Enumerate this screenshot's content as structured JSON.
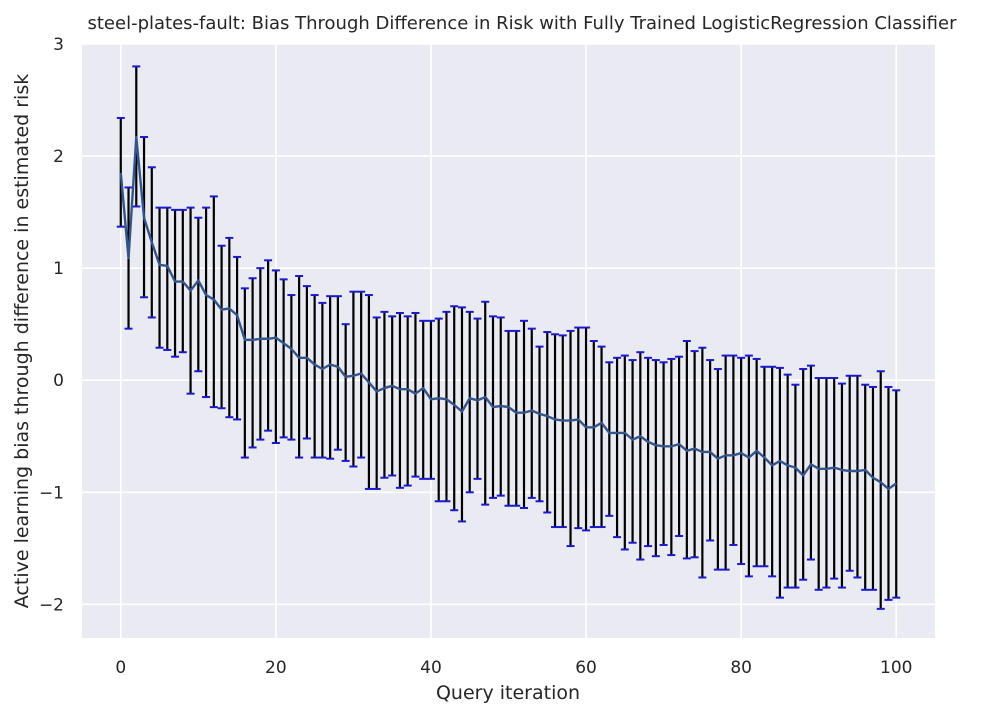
{
  "chart_data": {
    "type": "line",
    "title": "steel-plates-fault: Bias Through Difference in Risk with Fully Trained LogisticRegression Classifier",
    "xlabel": "Query iteration",
    "ylabel": "Active learning bias through difference in estimated risk",
    "xlim": [
      -5,
      105
    ],
    "ylim": [
      -2.3,
      3.0
    ],
    "xticks": [
      0,
      20,
      40,
      60,
      80,
      100
    ],
    "xtick_labels": [
      "0",
      "20",
      "40",
      "60",
      "80",
      "100"
    ],
    "yticks": [
      -2,
      -1,
      0,
      1,
      2,
      3
    ],
    "ytick_labels": [
      "−2",
      "−1",
      "0",
      "1",
      "2",
      "3"
    ],
    "grid": true,
    "colors": {
      "background": "#EAEAF2",
      "grid": "#FFFFFF",
      "line": "#34558B",
      "errorbar": "#000000",
      "cap": "#1A1ACC"
    },
    "series": [
      {
        "x": [
          0,
          1,
          2,
          3,
          4,
          5,
          6,
          7,
          8,
          9,
          10,
          11,
          12,
          13,
          14,
          15,
          16,
          17,
          18,
          19,
          20,
          21,
          22,
          23,
          24,
          25,
          26,
          27,
          28,
          29,
          30,
          31,
          32,
          33,
          34,
          35,
          36,
          37,
          38,
          39,
          40,
          41,
          42,
          43,
          44,
          45,
          46,
          47,
          48,
          49,
          50,
          51,
          52,
          53,
          54,
          55,
          56,
          57,
          58,
          59,
          60,
          61,
          62,
          63,
          64,
          65,
          66,
          67,
          68,
          69,
          70,
          71,
          72,
          73,
          74,
          75,
          76,
          77,
          78,
          79,
          80,
          81,
          82,
          83,
          84,
          85,
          86,
          87,
          88,
          89,
          90,
          91,
          92,
          93,
          94,
          95,
          96,
          97,
          98,
          99,
          100
        ],
        "y": [
          1.85,
          1.09,
          2.17,
          1.45,
          1.23,
          1.03,
          1.02,
          0.88,
          0.88,
          0.8,
          0.89,
          0.76,
          0.72,
          0.63,
          0.64,
          0.58,
          0.36,
          0.36,
          0.37,
          0.37,
          0.38,
          0.33,
          0.28,
          0.2,
          0.2,
          0.14,
          0.1,
          0.14,
          0.12,
          0.03,
          0.04,
          0.06,
          -0.02,
          -0.1,
          -0.07,
          -0.05,
          -0.08,
          -0.08,
          -0.12,
          -0.07,
          -0.17,
          -0.16,
          -0.17,
          -0.22,
          -0.28,
          -0.16,
          -0.18,
          -0.15,
          -0.24,
          -0.23,
          -0.24,
          -0.29,
          -0.29,
          -0.27,
          -0.3,
          -0.32,
          -0.35,
          -0.36,
          -0.36,
          -0.35,
          -0.42,
          -0.42,
          -0.38,
          -0.47,
          -0.47,
          -0.47,
          -0.53,
          -0.5,
          -0.55,
          -0.58,
          -0.59,
          -0.59,
          -0.57,
          -0.63,
          -0.61,
          -0.64,
          -0.64,
          -0.7,
          -0.67,
          -0.67,
          -0.65,
          -0.69,
          -0.63,
          -0.69,
          -0.76,
          -0.72,
          -0.76,
          -0.78,
          -0.85,
          -0.75,
          -0.79,
          -0.79,
          -0.78,
          -0.8,
          -0.81,
          -0.81,
          -0.8,
          -0.87,
          -0.91,
          -0.97,
          -0.92
        ],
        "upper": [
          2.34,
          1.72,
          2.8,
          2.17,
          1.9,
          1.54,
          1.54,
          1.52,
          1.52,
          1.54,
          1.45,
          1.54,
          1.64,
          1.2,
          1.27,
          1.1,
          0.82,
          0.91,
          1.0,
          1.07,
          0.98,
          0.9,
          0.76,
          0.93,
          0.84,
          0.76,
          0.69,
          0.75,
          0.75,
          0.5,
          0.79,
          0.79,
          0.76,
          0.56,
          0.61,
          0.57,
          0.6,
          0.57,
          0.6,
          0.53,
          0.53,
          0.55,
          0.61,
          0.66,
          0.65,
          0.61,
          0.55,
          0.7,
          0.57,
          0.56,
          0.44,
          0.44,
          0.53,
          0.46,
          0.3,
          0.43,
          0.41,
          0.4,
          0.44,
          0.47,
          0.47,
          0.35,
          0.3,
          0.16,
          0.2,
          0.22,
          0.18,
          0.25,
          0.2,
          0.18,
          0.16,
          0.19,
          0.21,
          0.35,
          0.26,
          0.29,
          0.18,
          0.1,
          0.22,
          0.22,
          0.2,
          0.22,
          0.19,
          0.12,
          0.12,
          0.11,
          0.05,
          -0.04,
          0.1,
          0.13,
          0.02,
          0.02,
          0.02,
          -0.03,
          0.04,
          0.04,
          -0.04,
          -0.06,
          0.08,
          -0.06,
          -0.09
        ],
        "lower": [
          1.37,
          0.46,
          1.55,
          0.74,
          0.56,
          0.29,
          0.27,
          0.21,
          0.25,
          -0.12,
          0.08,
          -0.15,
          -0.24,
          -0.25,
          -0.33,
          -0.35,
          -0.69,
          -0.6,
          -0.53,
          -0.45,
          -0.56,
          -0.51,
          -0.53,
          -0.69,
          -0.52,
          -0.69,
          -0.69,
          -0.7,
          -0.62,
          -0.72,
          -0.77,
          -0.69,
          -0.97,
          -0.97,
          -0.87,
          -0.85,
          -0.96,
          -0.94,
          -0.86,
          -0.88,
          -0.88,
          -1.08,
          -1.08,
          -1.16,
          -1.26,
          -1.0,
          -0.88,
          -1.11,
          -1.05,
          -1.03,
          -1.12,
          -1.12,
          -1.14,
          -1.05,
          -1.08,
          -1.18,
          -1.31,
          -1.31,
          -1.48,
          -1.32,
          -1.34,
          -1.31,
          -1.31,
          -1.21,
          -1.4,
          -1.51,
          -1.45,
          -1.6,
          -1.48,
          -1.57,
          -1.47,
          -1.56,
          -1.39,
          -1.59,
          -1.58,
          -1.76,
          -1.43,
          -1.69,
          -1.69,
          -1.47,
          -1.64,
          -1.75,
          -1.66,
          -1.66,
          -1.75,
          -1.94,
          -1.85,
          -1.85,
          -1.78,
          -1.6,
          -1.87,
          -1.85,
          -1.77,
          -1.85,
          -1.7,
          -1.76,
          -1.87,
          -1.87,
          -2.04,
          -1.96,
          -1.94
        ]
      }
    ]
  }
}
